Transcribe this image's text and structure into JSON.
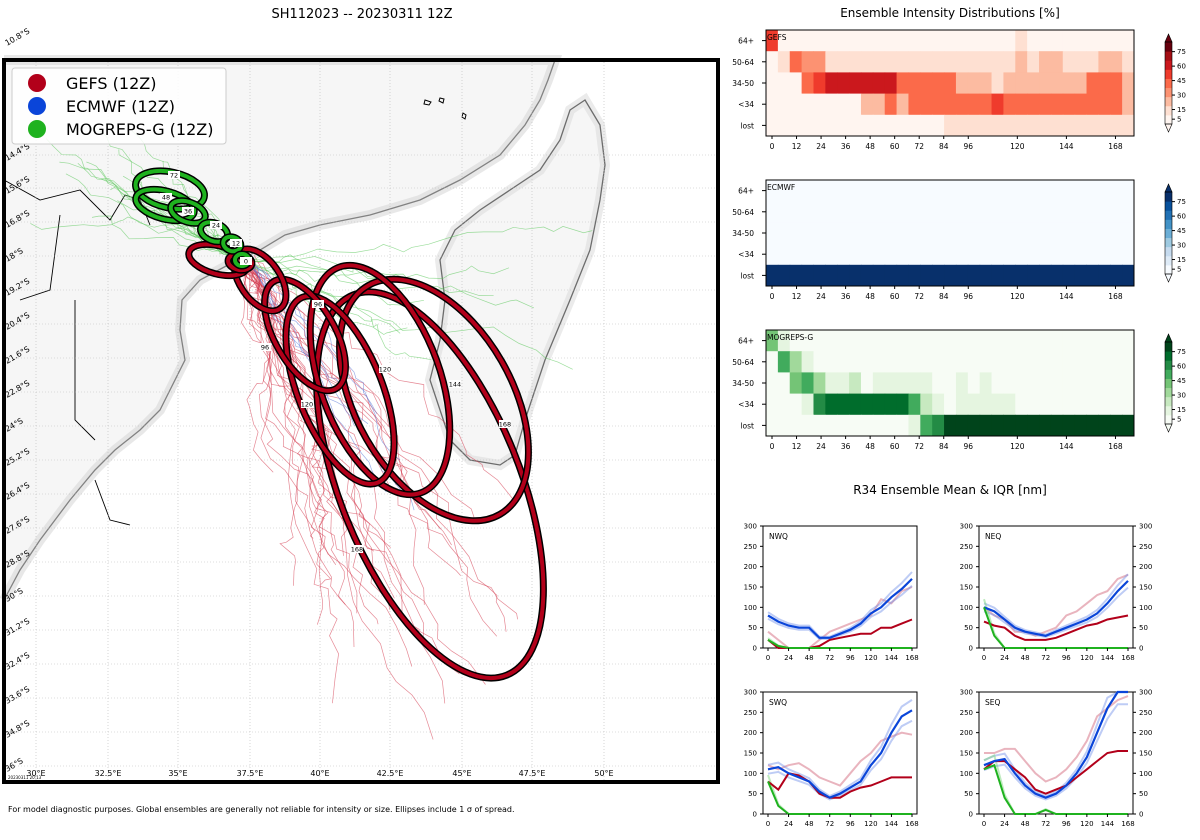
{
  "title": "SH112023 -- 20230311 12Z",
  "footnote": "For model diagnostic purposes. Global ensembles are generally not reliable for intensity or size. Ellipses include 1 σ of spread.",
  "stamp": "20230311 20:13",
  "colors": {
    "gefs": "#b2001a",
    "ecmwf": "#0a45d9",
    "mogreps": "#1fb21f"
  },
  "map": {
    "lat_labels": [
      "10.8°S",
      "14.4°S",
      "15.6°S",
      "16.8°S",
      "18°S",
      "19.2°S",
      "20.4°S",
      "21.6°S",
      "22.8°S",
      "24°S",
      "25.2°S",
      "26.4°S",
      "27.6°S",
      "28.8°S",
      "30°S",
      "31.2°S",
      "32.4°S",
      "33.6°S",
      "34.8°S",
      "36°S"
    ],
    "lon_labels": [
      "30°E",
      "32.5°E",
      "35°E",
      "37.5°E",
      "40°E",
      "42.5°E",
      "45°E",
      "47.5°E",
      "50°E"
    ],
    "legend": [
      {
        "label": "GEFS (12Z)",
        "color": "#b2001a"
      },
      {
        "label": "ECMWF (12Z)",
        "color": "#0a45d9"
      },
      {
        "label": "MOGREPS-G (12Z)",
        "color": "#1fb21f"
      }
    ],
    "ellipse_labels": [
      "72",
      "48",
      "36",
      "24",
      "12",
      "0",
      "96",
      "120",
      "144",
      "168",
      "120",
      "168"
    ]
  },
  "chart_data": [
    {
      "type": "heatmap",
      "title": "Ensemble Intensity Distributions [%]",
      "name": "GEFS",
      "x_ticks": [
        0,
        12,
        24,
        36,
        48,
        60,
        72,
        84,
        96,
        120,
        144,
        168
      ],
      "rows": [
        "64+",
        "50-64",
        "34-50",
        "<34",
        "lost"
      ],
      "colorbar_ticks": [
        5,
        15,
        30,
        45,
        60,
        75
      ],
      "values": [
        [
          60,
          0,
          0,
          0,
          0,
          0,
          0,
          0,
          0,
          0,
          0,
          0,
          0,
          0,
          0,
          0,
          0,
          0,
          0,
          5,
          0,
          10,
          0,
          0,
          0,
          0,
          0,
          0,
          0,
          0,
          5
        ],
        [
          0,
          15,
          45,
          35,
          35,
          15,
          15,
          15,
          15,
          15,
          15,
          15,
          15,
          15,
          15,
          15,
          15,
          15,
          15,
          10,
          15,
          30,
          10,
          25,
          25,
          15,
          15,
          15,
          25,
          25,
          10
        ],
        [
          0,
          0,
          0,
          45,
          60,
          75,
          80,
          80,
          80,
          70,
          70,
          55,
          45,
          45,
          45,
          45,
          30,
          30,
          30,
          15,
          30,
          20,
          30,
          30,
          30,
          30,
          30,
          45,
          45,
          45,
          30
        ],
        [
          0,
          0,
          0,
          0,
          0,
          0,
          0,
          5,
          20,
          30,
          45,
          30,
          45,
          45,
          45,
          45,
          45,
          45,
          45,
          60,
          45,
          45,
          45,
          45,
          45,
          45,
          45,
          45,
          45,
          45,
          30
        ],
        [
          0,
          0,
          0,
          0,
          0,
          0,
          0,
          0,
          0,
          0,
          0,
          0,
          0,
          0,
          5,
          15,
          15,
          15,
          15,
          15,
          15,
          15,
          15,
          15,
          15,
          15,
          15,
          15,
          15,
          15,
          15
        ]
      ]
    },
    {
      "type": "heatmap",
      "name": "ECMWF",
      "x_ticks": [
        0,
        12,
        24,
        36,
        48,
        60,
        72,
        84,
        96,
        120,
        144,
        168
      ],
      "rows": [
        "64+",
        "50-64",
        "34-50",
        "<34",
        "lost"
      ],
      "colorbar_ticks": [
        5,
        15,
        30,
        45,
        60,
        75
      ],
      "values": [
        [
          0,
          0,
          0,
          0,
          0,
          0,
          0,
          0,
          0,
          0,
          0,
          0,
          0,
          0,
          0,
          0,
          0,
          0,
          0,
          0,
          0,
          0,
          0,
          0,
          0,
          0,
          0,
          0,
          0,
          0,
          0
        ],
        [
          0,
          0,
          0,
          0,
          0,
          0,
          0,
          0,
          0,
          0,
          0,
          0,
          0,
          0,
          0,
          0,
          0,
          0,
          0,
          0,
          0,
          0,
          0,
          0,
          0,
          0,
          0,
          0,
          0,
          0,
          0
        ],
        [
          0,
          0,
          0,
          0,
          0,
          0,
          0,
          0,
          0,
          0,
          0,
          0,
          0,
          0,
          0,
          0,
          0,
          0,
          0,
          0,
          0,
          0,
          0,
          0,
          0,
          0,
          0,
          0,
          0,
          0,
          0
        ],
        [
          0,
          0,
          0,
          0,
          0,
          0,
          0,
          0,
          0,
          0,
          0,
          0,
          0,
          0,
          0,
          0,
          0,
          0,
          0,
          0,
          0,
          0,
          0,
          0,
          0,
          0,
          0,
          0,
          0,
          0,
          0
        ],
        [
          100,
          100,
          100,
          100,
          100,
          100,
          100,
          100,
          100,
          100,
          100,
          100,
          100,
          100,
          100,
          100,
          100,
          100,
          100,
          100,
          100,
          100,
          100,
          100,
          100,
          100,
          100,
          100,
          100,
          100,
          100
        ]
      ]
    },
    {
      "type": "heatmap",
      "name": "MOGREPS-G",
      "x_ticks": [
        0,
        12,
        24,
        36,
        48,
        60,
        72,
        84,
        96,
        120,
        144,
        168
      ],
      "rows": [
        "64+",
        "50-64",
        "34-50",
        "<34",
        "lost"
      ],
      "colorbar_ticks": [
        5,
        15,
        30,
        45,
        60,
        75
      ],
      "values": [
        [
          45,
          10,
          5,
          0,
          0,
          0,
          0,
          0,
          0,
          0,
          0,
          0,
          0,
          0,
          0,
          0,
          0,
          0,
          0,
          0,
          0,
          0,
          0,
          0,
          0,
          0,
          0,
          0,
          0,
          0,
          0
        ],
        [
          5,
          60,
          35,
          10,
          0,
          0,
          0,
          0,
          0,
          0,
          0,
          0,
          0,
          0,
          0,
          0,
          0,
          0,
          0,
          0,
          0,
          0,
          0,
          0,
          0,
          0,
          0,
          0,
          0,
          0,
          0
        ],
        [
          0,
          0,
          45,
          60,
          40,
          10,
          10,
          20,
          0,
          10,
          10,
          10,
          10,
          10,
          0,
          0,
          10,
          0,
          10,
          0,
          0,
          0,
          0,
          0,
          0,
          0,
          0,
          0,
          0,
          0,
          0
        ],
        [
          0,
          0,
          0,
          10,
          70,
          90,
          90,
          90,
          90,
          90,
          90,
          90,
          60,
          30,
          10,
          0,
          10,
          10,
          10,
          10,
          10,
          0,
          0,
          0,
          0,
          0,
          0,
          0,
          0,
          0,
          0
        ],
        [
          0,
          0,
          0,
          0,
          0,
          0,
          0,
          0,
          0,
          0,
          0,
          0,
          10,
          60,
          80,
          95,
          95,
          95,
          95,
          95,
          95,
          95,
          95,
          95,
          95,
          95,
          95,
          95,
          95,
          95,
          95
        ]
      ]
    },
    {
      "type": "line",
      "title": "R34 Ensemble Mean & IQR [nm]",
      "panels": [
        {
          "name": "NWQ",
          "x": [
            0,
            12,
            24,
            36,
            48,
            60,
            72,
            84,
            96,
            108,
            120,
            132,
            144,
            156,
            168
          ],
          "ylim": [
            0,
            300
          ],
          "gefs_mean": [
            20,
            0,
            0,
            0,
            0,
            5,
            20,
            25,
            30,
            35,
            35,
            50,
            50,
            60,
            70
          ],
          "gefs_iqr_hi": [
            40,
            20,
            0,
            0,
            0,
            20,
            40,
            50,
            60,
            70,
            80,
            120,
            110,
            140,
            150
          ],
          "ecmwf_mean": [
            80,
            65,
            55,
            50,
            50,
            25,
            25,
            35,
            45,
            60,
            85,
            100,
            125,
            145,
            170
          ],
          "mogreps_mean": [
            20,
            5,
            0,
            0,
            0,
            0,
            0,
            0,
            0,
            0,
            0,
            0,
            0,
            0,
            0
          ]
        },
        {
          "name": "NEQ",
          "x": [
            0,
            12,
            24,
            36,
            48,
            60,
            72,
            84,
            96,
            108,
            120,
            132,
            144,
            156,
            168
          ],
          "ylim": [
            0,
            300
          ],
          "gefs_mean": [
            65,
            55,
            50,
            30,
            20,
            20,
            20,
            25,
            35,
            45,
            55,
            60,
            70,
            75,
            80
          ],
          "gefs_iqr_hi": [
            100,
            80,
            70,
            40,
            40,
            30,
            40,
            50,
            80,
            90,
            110,
            130,
            140,
            170,
            180
          ],
          "ecmwf_mean": [
            100,
            90,
            70,
            50,
            40,
            35,
            30,
            40,
            50,
            60,
            70,
            85,
            110,
            140,
            165
          ],
          "mogreps_mean": [
            100,
            30,
            0,
            0,
            0,
            0,
            0,
            0,
            0,
            0,
            0,
            0,
            0,
            0,
            0
          ]
        },
        {
          "name": "SWQ",
          "x": [
            0,
            12,
            24,
            36,
            48,
            60,
            72,
            84,
            96,
            108,
            120,
            132,
            144,
            156,
            168
          ],
          "ylim": [
            0,
            300
          ],
          "gefs_mean": [
            80,
            60,
            100,
            95,
            80,
            50,
            40,
            40,
            55,
            65,
            70,
            80,
            90,
            90,
            90
          ],
          "gefs_iqr_hi": [
            120,
            110,
            120,
            125,
            110,
            90,
            80,
            70,
            100,
            130,
            150,
            180,
            190,
            200,
            195
          ],
          "ecmwf_mean": [
            110,
            115,
            100,
            90,
            80,
            55,
            40,
            50,
            65,
            80,
            120,
            150,
            200,
            240,
            255
          ],
          "mogreps_mean": [
            80,
            20,
            0,
            0,
            0,
            0,
            0,
            0,
            0,
            0,
            0,
            0,
            0,
            0,
            0
          ]
        },
        {
          "name": "SEQ",
          "x": [
            0,
            12,
            24,
            36,
            48,
            60,
            72,
            84,
            96,
            108,
            120,
            132,
            144,
            156,
            168
          ],
          "ylim": [
            0,
            300
          ],
          "gefs_mean": [
            110,
            130,
            130,
            110,
            90,
            60,
            50,
            60,
            70,
            90,
            110,
            130,
            150,
            155,
            155
          ],
          "gefs_iqr_hi": [
            150,
            150,
            160,
            160,
            130,
            100,
            80,
            90,
            110,
            140,
            180,
            240,
            260,
            280,
            290
          ],
          "ecmwf_mean": [
            120,
            130,
            135,
            100,
            70,
            50,
            40,
            50,
            70,
            100,
            140,
            200,
            260,
            300,
            300
          ],
          "mogreps_mean": [
            110,
            120,
            40,
            0,
            0,
            0,
            10,
            0,
            0,
            0,
            0,
            0,
            0,
            0,
            0
          ]
        }
      ],
      "y_ticks": [
        0,
        50,
        100,
        150,
        200,
        250,
        300
      ],
      "x_ticks": [
        0,
        24,
        48,
        72,
        96,
        120,
        144,
        168
      ]
    }
  ]
}
